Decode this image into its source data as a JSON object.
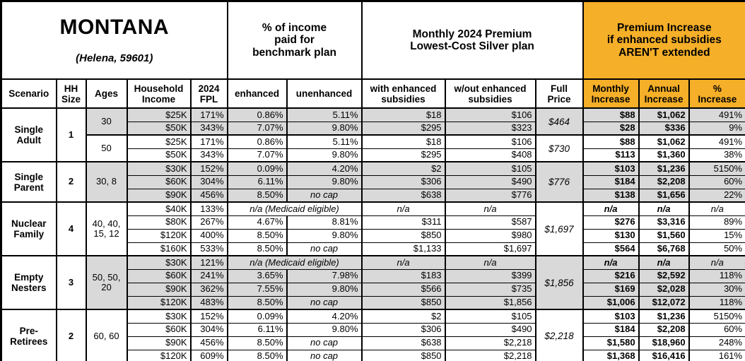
{
  "table": {
    "title": "MONTANA",
    "subtitle": "(Helena, 59601)",
    "colors": {
      "accent_orange": "#F5AF28",
      "shade_gray": "#D9D9D9",
      "border_black": "#000000"
    },
    "group_headers": {
      "benchmark": "% of income\npaid for\nbenchmark plan",
      "premium": "Monthly 2024 Premium\nLowest-Cost Silver plan",
      "increase": "Premium Increase\nif enhanced subsidies\nAREN'T extended"
    },
    "columns": {
      "scenario": "Scenario",
      "hh_size": "HH\nSize",
      "ages": "Ages",
      "income": "Household\nIncome",
      "fpl": "2024\nFPL",
      "enhanced": "enhanced",
      "unenhanced": "unenhanced",
      "with_sub": "with enhanced\nsubsidies",
      "without_sub": "w/out enhanced\nsubsidies",
      "full_price": "Full\nPrice",
      "monthly": "Monthly\nIncrease",
      "annual": "Annual\nIncrease",
      "pct": "%\nIncrease"
    },
    "sections": [
      {
        "scenario": "Single\nAdult",
        "hh_size": "1",
        "groups": [
          {
            "ages": "30",
            "shaded": true,
            "full_price": "$464",
            "rows": [
              {
                "income": "$25K",
                "fpl": "171%",
                "enhanced": "0.86%",
                "unenhanced": "5.11%",
                "with_sub": "$18",
                "without_sub": "$106",
                "monthly": "$88",
                "annual": "$1,062",
                "pct": "491%"
              },
              {
                "income": "$50K",
                "fpl": "343%",
                "enhanced": "7.07%",
                "unenhanced": "9.80%",
                "with_sub": "$295",
                "without_sub": "$323",
                "monthly": "$28",
                "annual": "$336",
                "pct": "9%"
              }
            ]
          },
          {
            "ages": "50",
            "shaded": false,
            "full_price": "$730",
            "rows": [
              {
                "income": "$25K",
                "fpl": "171%",
                "enhanced": "0.86%",
                "unenhanced": "5.11%",
                "with_sub": "$18",
                "without_sub": "$106",
                "monthly": "$88",
                "annual": "$1,062",
                "pct": "491%"
              },
              {
                "income": "$50K",
                "fpl": "343%",
                "enhanced": "7.07%",
                "unenhanced": "9.80%",
                "with_sub": "$295",
                "without_sub": "$408",
                "monthly": "$113",
                "annual": "$1,360",
                "pct": "38%"
              }
            ]
          }
        ]
      },
      {
        "scenario": "Single\nParent",
        "hh_size": "2",
        "groups": [
          {
            "ages": "30, 8",
            "shaded": true,
            "full_price": "$776",
            "rows": [
              {
                "income": "$30K",
                "fpl": "152%",
                "enhanced": "0.09%",
                "unenhanced": "4.20%",
                "with_sub": "$2",
                "without_sub": "$105",
                "monthly": "$103",
                "annual": "$1,236",
                "pct": "5150%"
              },
              {
                "income": "$60K",
                "fpl": "304%",
                "enhanced": "6.11%",
                "unenhanced": "9.80%",
                "with_sub": "$306",
                "without_sub": "$490",
                "monthly": "$184",
                "annual": "$2,208",
                "pct": "60%"
              },
              {
                "income": "$90K",
                "fpl": "456%",
                "enhanced": "8.50%",
                "unenhanced": "no cap",
                "with_sub": "$638",
                "without_sub": "$776",
                "monthly": "$138",
                "annual": "$1,656",
                "pct": "22%"
              }
            ]
          }
        ]
      },
      {
        "scenario": "Nuclear\nFamily",
        "hh_size": "4",
        "groups": [
          {
            "ages": "40, 40,\n15, 12",
            "shaded": false,
            "full_price": "$1,697",
            "rows": [
              {
                "income": "$40K",
                "fpl": "133%",
                "enhanced_merged": "n/a (Medicaid eligible)",
                "with_sub": "n/a",
                "without_sub": "n/a",
                "monthly": "n/a",
                "annual": "n/a",
                "pct": "n/a"
              },
              {
                "income": "$80K",
                "fpl": "267%",
                "enhanced": "4.67%",
                "unenhanced": "8.81%",
                "with_sub": "$311",
                "without_sub": "$587",
                "monthly": "$276",
                "annual": "$3,316",
                "pct": "89%"
              },
              {
                "income": "$120K",
                "fpl": "400%",
                "enhanced": "8.50%",
                "unenhanced": "9.80%",
                "with_sub": "$850",
                "without_sub": "$980",
                "monthly": "$130",
                "annual": "$1,560",
                "pct": "15%"
              },
              {
                "income": "$160K",
                "fpl": "533%",
                "enhanced": "8.50%",
                "unenhanced": "no cap",
                "with_sub": "$1,133",
                "without_sub": "$1,697",
                "monthly": "$564",
                "annual": "$6,768",
                "pct": "50%"
              }
            ]
          }
        ]
      },
      {
        "scenario": "Empty\nNesters",
        "hh_size": "3",
        "groups": [
          {
            "ages": "50, 50,\n20",
            "shaded": true,
            "full_price": "$1,856",
            "rows": [
              {
                "income": "$30K",
                "fpl": "121%",
                "enhanced_merged": "n/a (Medicaid eligible)",
                "with_sub": "n/a",
                "without_sub": "n/a",
                "monthly": "n/a",
                "annual": "n/a",
                "pct": "n/a"
              },
              {
                "income": "$60K",
                "fpl": "241%",
                "enhanced": "3.65%",
                "unenhanced": "7.98%",
                "with_sub": "$183",
                "without_sub": "$399",
                "monthly": "$216",
                "annual": "$2,592",
                "pct": "118%"
              },
              {
                "income": "$90K",
                "fpl": "362%",
                "enhanced": "7.55%",
                "unenhanced": "9.80%",
                "with_sub": "$566",
                "without_sub": "$735",
                "monthly": "$169",
                "annual": "$2,028",
                "pct": "30%"
              },
              {
                "income": "$120K",
                "fpl": "483%",
                "enhanced": "8.50%",
                "unenhanced": "no cap",
                "with_sub": "$850",
                "without_sub": "$1,856",
                "monthly": "$1,006",
                "annual": "$12,072",
                "pct": "118%"
              }
            ]
          }
        ]
      },
      {
        "scenario": "Pre-\nRetirees",
        "hh_size": "2",
        "groups": [
          {
            "ages": "60, 60",
            "shaded": false,
            "full_price": "$2,218",
            "rows": [
              {
                "income": "$30K",
                "fpl": "152%",
                "enhanced": "0.09%",
                "unenhanced": "4.20%",
                "with_sub": "$2",
                "without_sub": "$105",
                "monthly": "$103",
                "annual": "$1,236",
                "pct": "5150%"
              },
              {
                "income": "$60K",
                "fpl": "304%",
                "enhanced": "6.11%",
                "unenhanced": "9.80%",
                "with_sub": "$306",
                "without_sub": "$490",
                "monthly": "$184",
                "annual": "$2,208",
                "pct": "60%"
              },
              {
                "income": "$90K",
                "fpl": "456%",
                "enhanced": "8.50%",
                "unenhanced": "no cap",
                "with_sub": "$638",
                "without_sub": "$2,218",
                "monthly": "$1,580",
                "annual": "$18,960",
                "pct": "248%"
              },
              {
                "income": "$120K",
                "fpl": "609%",
                "enhanced": "8.50%",
                "unenhanced": "no cap",
                "with_sub": "$850",
                "without_sub": "$2,218",
                "monthly": "$1,368",
                "annual": "$16,416",
                "pct": "161%"
              }
            ]
          }
        ]
      }
    ]
  }
}
